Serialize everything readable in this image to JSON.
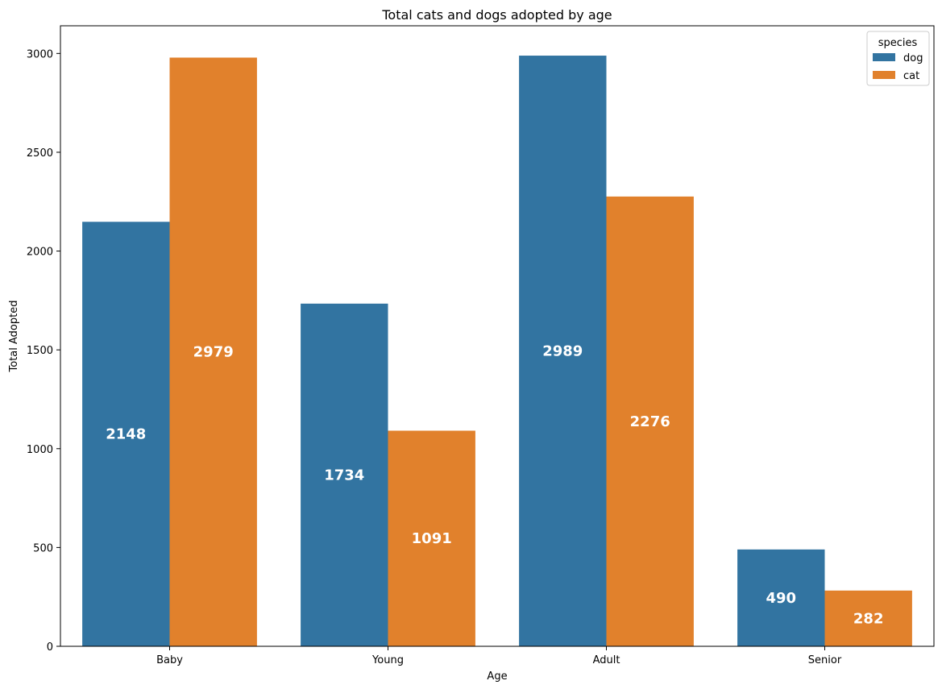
{
  "chart_data": {
    "type": "bar",
    "title": "Total cats and dogs adopted by age",
    "xlabel": "Age",
    "ylabel": "Total Adopted",
    "categories": [
      "Baby",
      "Young",
      "Adult",
      "Senior"
    ],
    "series": [
      {
        "name": "dog",
        "color": "#3274a1",
        "values": [
          2148,
          1734,
          2989,
          490
        ]
      },
      {
        "name": "cat",
        "color": "#e1812c",
        "values": [
          2979,
          1091,
          2276,
          282
        ]
      }
    ],
    "bar_labels": [
      [
        "2148",
        "1734",
        "2989",
        "490"
      ],
      [
        "2979",
        "1091",
        "2276",
        "282"
      ]
    ],
    "ylim": [
      0,
      3140
    ],
    "yticks": [
      0,
      500,
      1000,
      1500,
      2000,
      2500,
      3000
    ],
    "legend": {
      "title": "species",
      "position": "top-right"
    },
    "grid": false
  }
}
